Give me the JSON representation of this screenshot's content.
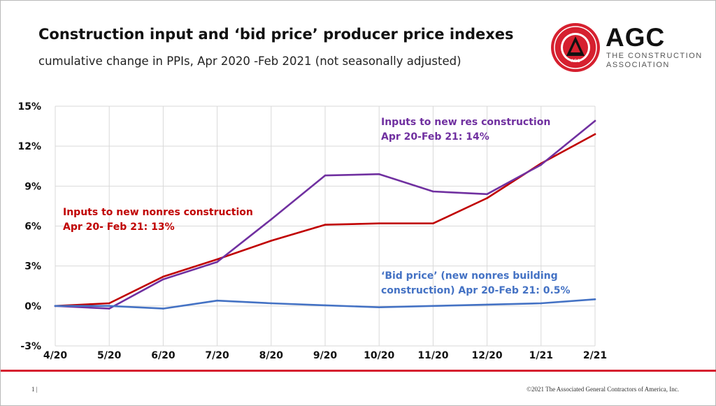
{
  "slide": {
    "page_number": "1 |",
    "copyright": "©2021 The Associated General Contractors of America, Inc."
  },
  "logo": {
    "wordmark": "AGC",
    "tagline_line1": "THE CONSTRUCTION",
    "tagline_line2": "ASSOCIATION",
    "seal_text": "ASSOCIATED GENERAL CONTRACTORS OF AMERICA",
    "seal_initials": "AGC",
    "colors": {
      "red": "#d6202f",
      "black": "#111111"
    }
  },
  "chart_data": {
    "type": "line",
    "title": "Construction input and ‘bid price’ producer price indexes",
    "subtitle": "cumulative change in PPIs, Apr 2020 -Feb 2021 (not seasonally adjusted)",
    "categories": [
      "4/20",
      "5/20",
      "6/20",
      "7/20",
      "8/20",
      "9/20",
      "10/20",
      "11/20",
      "12/20",
      "1/21",
      "2/21"
    ],
    "ylim": [
      -3,
      15
    ],
    "yticks": [
      -3,
      0,
      3,
      6,
      9,
      12,
      15
    ],
    "ytick_labels": [
      "-3%",
      "0%",
      "3%",
      "6%",
      "9%",
      "12%",
      "15%"
    ],
    "grid": true,
    "legend": "none",
    "series": [
      {
        "key": "nonres",
        "color": "#c00000",
        "values": [
          0,
          0.2,
          2.2,
          3.5,
          4.9,
          6.1,
          6.2,
          6.2,
          8.1,
          10.7,
          12.9
        ]
      },
      {
        "key": "res",
        "color": "#7030a0",
        "values": [
          0,
          -0.2,
          2.0,
          3.3,
          6.5,
          9.8,
          9.9,
          8.6,
          8.4,
          10.6,
          13.9
        ]
      },
      {
        "key": "bid",
        "color": "#4472c4",
        "values": [
          0,
          0.0,
          -0.2,
          0.4,
          0.2,
          0.05,
          -0.1,
          0.0,
          0.1,
          0.2,
          0.5
        ]
      }
    ],
    "annotations": [
      {
        "key": "nonres",
        "color": "#c00000",
        "line1": "Inputs to new nonres construction",
        "line2": "Apr 20- Feb 21: 13%"
      },
      {
        "key": "res",
        "color": "#7030a0",
        "line1": "Inputs to new res construction",
        "line2": "Apr 20-Feb 21: 14%"
      },
      {
        "key": "bid",
        "color": "#4472c4",
        "line1": "‘Bid price’ (new nonres building",
        "line2": "construction) Apr 20-Feb 21: 0.5%"
      }
    ]
  }
}
